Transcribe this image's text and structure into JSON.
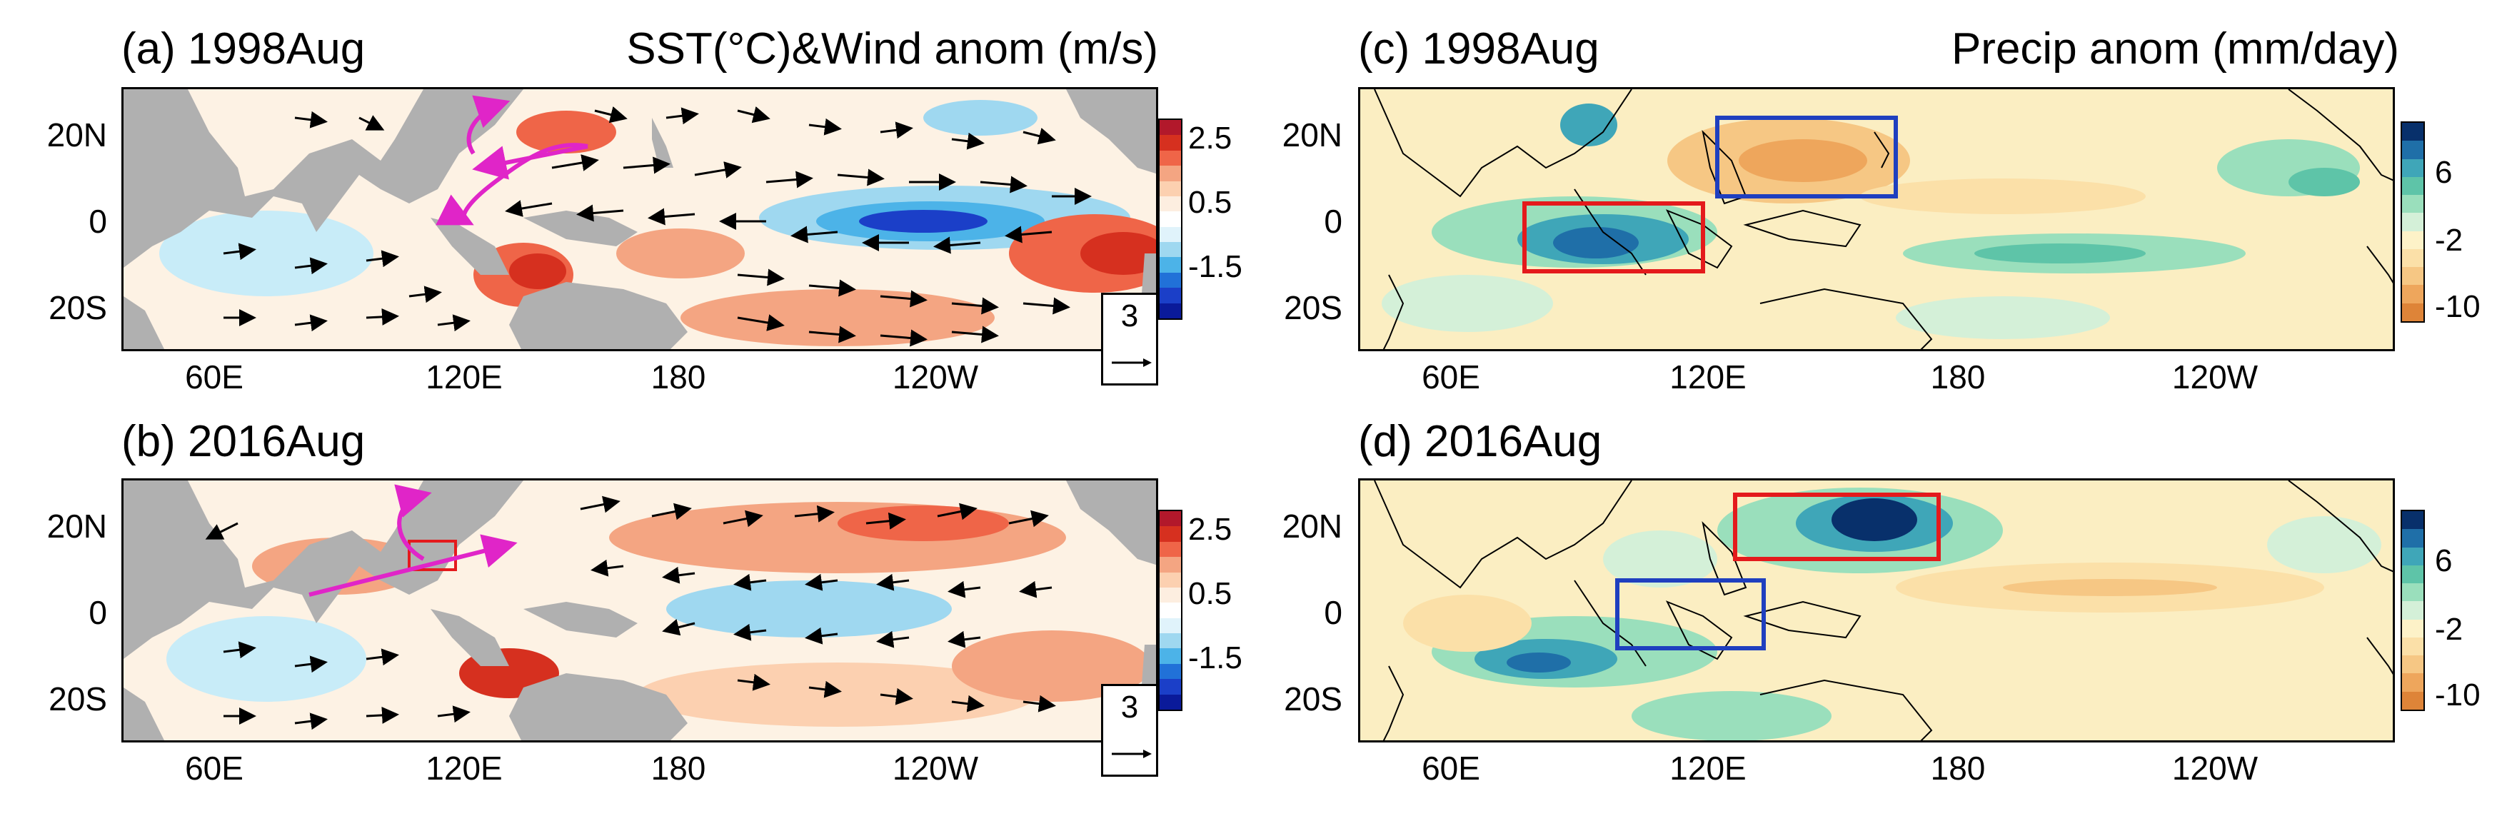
{
  "panels": {
    "a": {
      "title": "(a) 1998Aug",
      "variable": "SST(°C)&Wind anom (m/s)",
      "reference_vector": "3"
    },
    "b": {
      "title": "(b) 2016Aug",
      "reference_vector": "3"
    },
    "c": {
      "title": "(c) 1998Aug",
      "variable": "Precip anom (mm/day)"
    },
    "d": {
      "title": "(d) 2016Aug"
    }
  },
  "axes": {
    "lat_labels": [
      "20N",
      "0",
      "20S"
    ],
    "lon_labels": [
      "60E",
      "120E",
      "180",
      "120W"
    ]
  },
  "sst_colorbar": {
    "labels": [
      "2.5",
      "0.5",
      "-1.5"
    ],
    "colors": [
      "#b2182b",
      "#d6301f",
      "#ef6548",
      "#f4a582",
      "#fcd0b0",
      "#fdeee0",
      "#ffffff",
      "#e0f3fb",
      "#9fd8f0",
      "#4cb3e8",
      "#2171d8",
      "#1b3fc8",
      "#0a1a9a"
    ]
  },
  "precip_colorbar": {
    "labels": [
      "6",
      "-2",
      "-10"
    ],
    "colors": [
      "#08306b",
      "#1f6fa8",
      "#3fa6b8",
      "#5ec4a8",
      "#9adfbc",
      "#d4f0d8",
      "#fdf2c8",
      "#fbe0a8",
      "#f6c784",
      "#eea65c",
      "#de8438"
    ]
  },
  "colors": {
    "land": "#b0b0b0",
    "ocean_base": "#fdf0d8",
    "precip_base": "#fbeec2",
    "box_red": "#e41a1c",
    "box_blue": "#1f3fbf",
    "magenta": "#e025c8"
  }
}
